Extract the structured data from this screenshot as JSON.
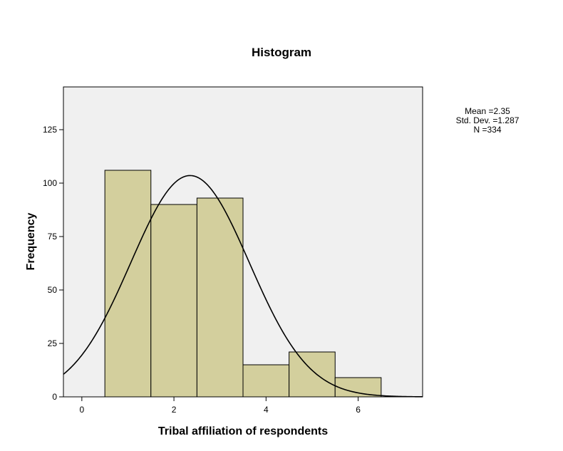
{
  "chart_data": {
    "type": "bar",
    "title": "Histogram",
    "xlabel": "Tribal affiliation of respondents",
    "ylabel": "Frequency",
    "xlim": [
      -0.4,
      7.4
    ],
    "ylim": [
      0,
      145
    ],
    "x_ticks": [
      0,
      2,
      4,
      6
    ],
    "y_ticks": [
      0,
      25,
      50,
      75,
      100,
      125
    ],
    "bins": [
      {
        "x0": 0.5,
        "x1": 1.5,
        "value": 106
      },
      {
        "x0": 1.5,
        "x1": 2.5,
        "value": 90
      },
      {
        "x0": 2.5,
        "x1": 3.5,
        "value": 93
      },
      {
        "x0": 3.5,
        "x1": 4.5,
        "value": 15
      },
      {
        "x0": 4.5,
        "x1": 5.5,
        "value": 21
      },
      {
        "x0": 5.5,
        "x1": 6.5,
        "value": 9
      }
    ],
    "normal_curve": {
      "mean": 2.35,
      "sd": 1.287,
      "n": 334,
      "bin_width": 1
    },
    "stats": {
      "mean": "Mean =2.35",
      "sd": "Std. Dev. =1.287",
      "n": "N =334"
    },
    "colors": {
      "bar_fill": "#d3cf9d",
      "plot_background": "#f0f0f0",
      "stroke": "#000000"
    },
    "grid": false
  }
}
